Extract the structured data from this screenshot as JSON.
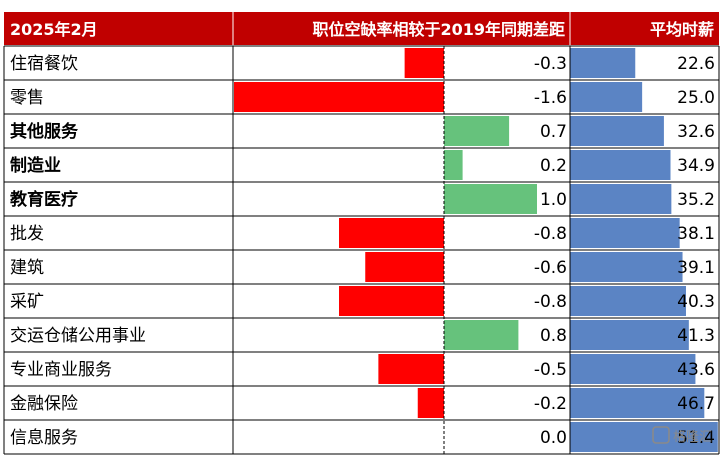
{
  "chart_data": {
    "type": "table",
    "headers": {
      "period": "2025年2月",
      "gap": "职位空缺率相较于2019年同期差距",
      "wage": "平均时薪"
    },
    "rows": [
      {
        "industry": "住宿餐饮",
        "gap": -0.3,
        "gap_label": "-0.3",
        "wage": 22.6,
        "wage_label": "22.6",
        "bold": false
      },
      {
        "industry": "零售",
        "gap": -1.6,
        "gap_label": "-1.6",
        "wage": 25.0,
        "wage_label": "25.0",
        "bold": false
      },
      {
        "industry": "其他服务",
        "gap": 0.7,
        "gap_label": "0.7",
        "wage": 32.6,
        "wage_label": "32.6",
        "bold": true
      },
      {
        "industry": "制造业",
        "gap": 0.2,
        "gap_label": "0.2",
        "wage": 34.9,
        "wage_label": "34.9",
        "bold": true
      },
      {
        "industry": "教育医疗",
        "gap": 1.0,
        "gap_label": "1.0",
        "wage": 35.2,
        "wage_label": "35.2",
        "bold": true
      },
      {
        "industry": "批发",
        "gap": -0.8,
        "gap_label": "-0.8",
        "wage": 38.1,
        "wage_label": "38.1",
        "bold": false
      },
      {
        "industry": "建筑",
        "gap": -0.6,
        "gap_label": "-0.6",
        "wage": 39.1,
        "wage_label": "39.1",
        "bold": false
      },
      {
        "industry": "采矿",
        "gap": -0.8,
        "gap_label": "-0.8",
        "wage": 40.3,
        "wage_label": "40.3",
        "bold": false
      },
      {
        "industry": "交运仓储公用事业",
        "gap": 0.8,
        "gap_label": "0.8",
        "wage": 41.3,
        "wage_label": "41.3",
        "bold": false
      },
      {
        "industry": "专业商业服务",
        "gap": -0.5,
        "gap_label": "-0.5",
        "wage": 43.6,
        "wage_label": "43.6",
        "bold": false
      },
      {
        "industry": "金融保险",
        "gap": -0.2,
        "gap_label": "-0.2",
        "wage": 46.7,
        "wage_label": "46.7",
        "bold": false
      },
      {
        "industry": "信息服务",
        "gap": 0.0,
        "gap_label": "0.0",
        "wage": 51.4,
        "wage_label": "51.4",
        "bold": false
      }
    ],
    "gap_range": [
      -1.6,
      1.0
    ],
    "wage_range": [
      0,
      52
    ],
    "colors": {
      "header_bg": "#c00000",
      "negative_bar": "#ff0000",
      "positive_bar": "#66c27c",
      "wage_bar": "#5b84c4"
    }
  },
  "watermark": "格隆汇"
}
